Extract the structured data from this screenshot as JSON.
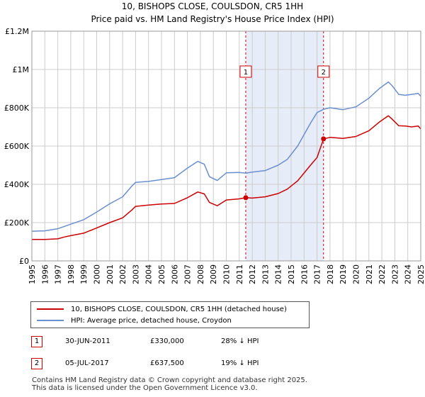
{
  "header": {
    "title": "10, BISHOPS CLOSE, COULSDON, CR5 1HH",
    "subtitle": "Price paid vs. HM Land Registry's House Price Index (HPI)"
  },
  "colors": {
    "red": "#cc0000",
    "blue": "#6a8fcf",
    "shade": "#e6ecf8",
    "grid": "#cccccc"
  },
  "chart_data": {
    "type": "line",
    "title": "10, BISHOPS CLOSE, COULSDON, CR5 1HH",
    "xlim": [
      1995,
      2025
    ],
    "ylim": [
      0,
      1200000
    ],
    "y_ticks": [
      {
        "value": 0,
        "label": "£0"
      },
      {
        "value": 200000,
        "label": "£200K"
      },
      {
        "value": 400000,
        "label": "£400K"
      },
      {
        "value": 600000,
        "label": "£600K"
      },
      {
        "value": 800000,
        "label": "£800K"
      },
      {
        "value": 1000000,
        "label": "£1M"
      },
      {
        "value": 1200000,
        "label": "£1.2M"
      }
    ],
    "x_ticks": [
      "1995",
      "1996",
      "1997",
      "1998",
      "1999",
      "2000",
      "2001",
      "2002",
      "2003",
      "2004",
      "2005",
      "2006",
      "2007",
      "2008",
      "2009",
      "2010",
      "2011",
      "2012",
      "2013",
      "2014",
      "2015",
      "2016",
      "2017",
      "2018",
      "2019",
      "2020",
      "2021",
      "2022",
      "2023",
      "2024",
      "2025"
    ],
    "shaded_range": [
      2011.5,
      2017.5
    ],
    "series": [
      {
        "name": "10, BISHOPS CLOSE, COULSDON, CR5 1HH (detached house)",
        "color": "#cc0000",
        "points": [
          [
            1995,
            112000
          ],
          [
            1996,
            112000
          ],
          [
            1997,
            115000
          ],
          [
            1997.5,
            125000
          ],
          [
            1998,
            132000
          ],
          [
            1999,
            145000
          ],
          [
            2000,
            172000
          ],
          [
            2001,
            200000
          ],
          [
            2002,
            225000
          ],
          [
            2002.7,
            265000
          ],
          [
            2003,
            285000
          ],
          [
            2004,
            292000
          ],
          [
            2005,
            297000
          ],
          [
            2006,
            300000
          ],
          [
            2007,
            330000
          ],
          [
            2007.8,
            360000
          ],
          [
            2008.3,
            350000
          ],
          [
            2008.7,
            305000
          ],
          [
            2009.3,
            288000
          ],
          [
            2010,
            318000
          ],
          [
            2011,
            324000
          ],
          [
            2011.5,
            330000
          ],
          [
            2012,
            328000
          ],
          [
            2013,
            335000
          ],
          [
            2014,
            352000
          ],
          [
            2014.7,
            375000
          ],
          [
            2015.5,
            418000
          ],
          [
            2016.5,
            500000
          ],
          [
            2017,
            540000
          ],
          [
            2017.5,
            637500
          ],
          [
            2018,
            645000
          ],
          [
            2019,
            640000
          ],
          [
            2020,
            650000
          ],
          [
            2021,
            680000
          ],
          [
            2021.8,
            725000
          ],
          [
            2022.5,
            758000
          ],
          [
            2022.8,
            740000
          ],
          [
            2023.3,
            706000
          ],
          [
            2023.8,
            705000
          ],
          [
            2024.3,
            700000
          ],
          [
            2024.8,
            705000
          ],
          [
            2025,
            690000
          ]
        ]
      },
      {
        "name": "HPI: Average price, detached house, Croydon",
        "color": "#6a8fcf",
        "points": [
          [
            1995,
            155000
          ],
          [
            1996,
            157000
          ],
          [
            1997,
            168000
          ],
          [
            1997.5,
            180000
          ],
          [
            1998,
            192000
          ],
          [
            1999,
            215000
          ],
          [
            2000,
            255000
          ],
          [
            2001,
            298000
          ],
          [
            2002,
            335000
          ],
          [
            2002.7,
            390000
          ],
          [
            2003,
            410000
          ],
          [
            2004,
            415000
          ],
          [
            2005,
            425000
          ],
          [
            2006,
            435000
          ],
          [
            2007,
            485000
          ],
          [
            2007.8,
            520000
          ],
          [
            2008.3,
            505000
          ],
          [
            2008.7,
            440000
          ],
          [
            2009.3,
            420000
          ],
          [
            2010,
            460000
          ],
          [
            2011,
            462000
          ],
          [
            2011.5,
            458000
          ],
          [
            2012,
            464000
          ],
          [
            2013,
            472000
          ],
          [
            2014,
            500000
          ],
          [
            2014.7,
            530000
          ],
          [
            2015.5,
            600000
          ],
          [
            2016.5,
            720000
          ],
          [
            2017,
            775000
          ],
          [
            2017.5,
            792000
          ],
          [
            2018,
            800000
          ],
          [
            2019,
            790000
          ],
          [
            2020,
            805000
          ],
          [
            2021,
            850000
          ],
          [
            2021.8,
            900000
          ],
          [
            2022.5,
            935000
          ],
          [
            2022.8,
            915000
          ],
          [
            2023.3,
            870000
          ],
          [
            2023.8,
            865000
          ],
          [
            2024.3,
            870000
          ],
          [
            2024.8,
            875000
          ],
          [
            2025,
            860000
          ]
        ]
      }
    ],
    "annotations": [
      {
        "label": "1",
        "x": 2011.5,
        "y": 330000
      },
      {
        "label": "2",
        "x": 2017.5,
        "y": 637500
      }
    ]
  },
  "legend": {
    "items": [
      {
        "label": "10, BISHOPS CLOSE, COULSDON, CR5 1HH (detached house)"
      },
      {
        "label": "HPI: Average price, detached house, Croydon"
      }
    ]
  },
  "transactions": [
    {
      "num": "1",
      "date": "30-JUN-2011",
      "price": "£330,000",
      "hpi": "28% ↓ HPI"
    },
    {
      "num": "2",
      "date": "05-JUL-2017",
      "price": "£637,500",
      "hpi": "19% ↓ HPI"
    }
  ],
  "footer": {
    "line1": "Contains HM Land Registry data © Crown copyright and database right 2025.",
    "line2": "This data is licensed under the Open Government Licence v3.0."
  }
}
